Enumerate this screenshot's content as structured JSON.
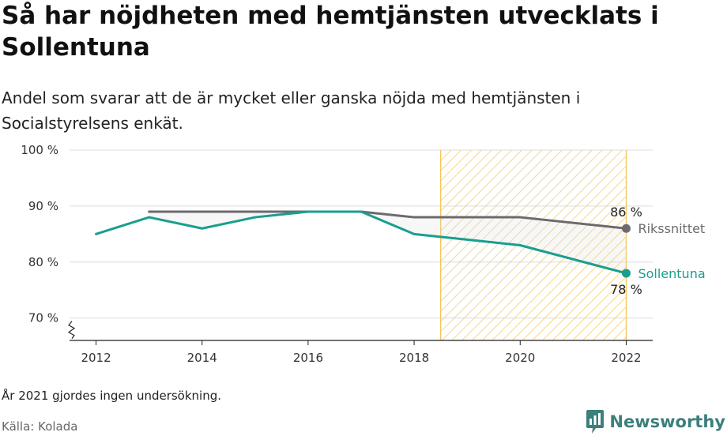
{
  "title": "Så har nöjdheten med hemtjänsten utvecklats i Sollentuna",
  "subtitle": "Andel som svarar att de är mycket eller ganska nöjda med hemtjänsten i Socialstyrelsens enkät.",
  "footnote": "År 2021 gjordes ingen undersökning.",
  "source": "Källa: Kolada",
  "brand": {
    "name": "Newsworthy",
    "icon": "newsworthy-logo-icon",
    "color": "#3c7f7b"
  },
  "chart_data": {
    "type": "line",
    "x_ticks": [
      2012,
      2014,
      2016,
      2018,
      2020,
      2022
    ],
    "y_ticks": [
      70,
      80,
      90,
      100
    ],
    "y_tick_labels": [
      "70 %",
      "80 %",
      "90 %",
      "100 %"
    ],
    "xlim": [
      2011.5,
      2022.5
    ],
    "ylim": [
      66,
      100
    ],
    "grid": true,
    "broken_y_axis": true,
    "highlight_range": {
      "x": [
        2018.5,
        2022
      ],
      "color": "#f2c75c"
    },
    "series": [
      {
        "name": "Rikssnittet",
        "color": "#6d6a6f",
        "x": [
          2013,
          2014,
          2015,
          2016,
          2017,
          2018,
          2019,
          2020,
          2022
        ],
        "values": [
          89,
          89,
          89,
          89,
          89,
          88,
          88,
          88,
          86
        ],
        "end_label": "86 %"
      },
      {
        "name": "Sollentuna",
        "color": "#1a9e8f",
        "x": [
          2012,
          2013,
          2014,
          2015,
          2016,
          2017,
          2018,
          2019,
          2020,
          2022
        ],
        "values": [
          85,
          88,
          86,
          88,
          89,
          89,
          85,
          84,
          83,
          78
        ],
        "end_label": "78 %"
      }
    ]
  }
}
